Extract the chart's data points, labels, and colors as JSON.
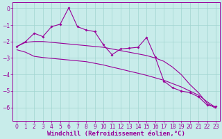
{
  "background_color": "#c8ecea",
  "grid_color": "#a0d4d0",
  "line_color": "#990099",
  "xlabel": "Windchill (Refroidissement éolien,°C)",
  "xlabel_fontsize": 6.5,
  "tick_fontsize": 5.5,
  "ylim": [
    -6.8,
    0.4
  ],
  "xlim": [
    -0.5,
    23.5
  ],
  "yticks": [
    0,
    -1,
    -2,
    -3,
    -4,
    -5,
    -6
  ],
  "xticks": [
    0,
    1,
    2,
    3,
    4,
    5,
    6,
    7,
    8,
    9,
    10,
    11,
    12,
    13,
    14,
    15,
    16,
    17,
    18,
    19,
    20,
    21,
    22,
    23
  ],
  "line1_x": [
    0,
    1,
    2,
    3,
    4,
    5,
    6,
    7,
    8,
    9,
    10,
    11,
    12,
    13,
    14,
    15,
    16,
    17,
    18,
    19,
    20,
    21,
    22,
    23
  ],
  "line1_y": [
    -2.3,
    -2.05,
    -2.0,
    -2.0,
    -2.05,
    -2.1,
    -2.15,
    -2.2,
    -2.25,
    -2.3,
    -2.35,
    -2.45,
    -2.55,
    -2.65,
    -2.75,
    -2.85,
    -3.0,
    -3.2,
    -3.55,
    -4.0,
    -4.6,
    -5.1,
    -5.75,
    -6.05
  ],
  "line2_x": [
    0,
    1,
    2,
    3,
    4,
    5,
    6,
    7,
    8,
    9,
    10,
    11,
    12,
    13,
    14,
    15,
    16,
    17,
    18,
    19,
    20,
    21,
    22,
    23
  ],
  "line2_y": [
    -2.5,
    -2.65,
    -2.9,
    -2.97,
    -3.02,
    -3.07,
    -3.12,
    -3.17,
    -3.22,
    -3.32,
    -3.42,
    -3.55,
    -3.67,
    -3.8,
    -3.92,
    -4.05,
    -4.2,
    -4.35,
    -4.55,
    -4.75,
    -5.0,
    -5.25,
    -5.65,
    -6.0
  ],
  "line3_x": [
    0,
    1,
    2,
    3,
    4,
    5,
    6,
    7,
    8,
    9,
    10,
    11,
    12,
    13,
    14,
    15,
    16,
    17,
    18,
    19,
    20,
    21,
    22,
    23
  ],
  "line3_y": [
    -2.3,
    -2.0,
    -1.5,
    -1.7,
    -1.1,
    -0.95,
    0.05,
    -1.1,
    -1.3,
    -1.4,
    -2.2,
    -2.8,
    -2.45,
    -2.4,
    -2.35,
    -1.75,
    -2.95,
    -4.4,
    -4.8,
    -5.0,
    -5.1,
    -5.35,
    -5.85,
    -5.95
  ]
}
